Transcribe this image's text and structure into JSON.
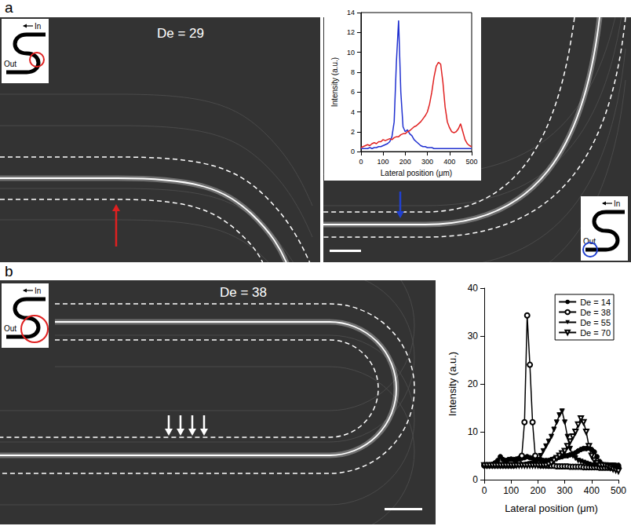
{
  "panels": [
    {
      "label": "a",
      "images": [
        {
          "annotation": "De = 29",
          "icon": {
            "inlet": "In",
            "outlet": "Out",
            "circle_color": "#e02020"
          },
          "arrow_color": "#e02020"
        },
        {
          "icon": {
            "inlet": "In",
            "outlet": "Out",
            "circle_color": "#2040d0"
          },
          "arrow_color": "#2040d0"
        }
      ]
    },
    {
      "label": "b",
      "images": [
        {
          "annotation": "De = 38",
          "icon": {
            "inlet": "In",
            "outlet": "Out",
            "circle_color": "#e02020"
          },
          "arrow_color": "#ffffff"
        }
      ]
    }
  ],
  "chart_data": [
    {
      "type": "line",
      "xlabel": "Lateral position (μm)",
      "ylabel": "Intensity (a.u.)",
      "x": [
        0,
        10,
        20,
        30,
        40,
        50,
        60,
        70,
        80,
        90,
        100,
        110,
        120,
        130,
        140,
        150,
        160,
        170,
        180,
        190,
        200,
        210,
        220,
        230,
        240,
        250,
        260,
        270,
        280,
        290,
        300,
        310,
        320,
        330,
        340,
        350,
        360,
        370,
        380,
        390,
        400,
        410,
        420,
        430,
        440,
        450,
        460,
        470,
        480,
        490,
        500
      ],
      "xlim": [
        0,
        500
      ],
      "xticks": [
        0,
        100,
        200,
        300,
        400,
        500
      ],
      "ylim": [
        0,
        14
      ],
      "yticks": [
        0,
        2,
        4,
        6,
        8,
        10,
        12,
        14
      ],
      "grid": false,
      "series": [
        {
          "color": "#2030d0",
          "values": [
            0.3,
            0.3,
            0.3,
            0.3,
            0.4,
            0.3,
            0.4,
            0.4,
            0.5,
            0.5,
            0.6,
            0.7,
            0.8,
            1.0,
            1.5,
            3.0,
            9.0,
            13.2,
            6.0,
            2.5,
            2.0,
            2.2,
            1.8,
            1.6,
            1.2,
            1.0,
            0.8,
            0.6,
            0.5,
            0.5,
            0.4,
            0.4,
            0.4,
            0.3,
            0.3,
            0.3,
            0.3,
            0.3,
            0.3,
            0.3,
            0.3,
            0.3,
            0.3,
            0.3,
            0.3,
            0.3,
            0.3,
            0.3,
            0.3,
            0.3,
            0.3
          ]
        },
        {
          "color": "#e02020",
          "values": [
            0.4,
            0.5,
            0.6,
            0.7,
            0.6,
            0.8,
            0.9,
            0.8,
            1.0,
            1.0,
            1.2,
            1.1,
            1.2,
            1.3,
            1.2,
            1.4,
            1.5,
            1.5,
            1.7,
            1.8,
            1.8,
            2.0,
            2.1,
            2.3,
            2.5,
            2.6,
            2.8,
            3.0,
            3.3,
            3.6,
            4.0,
            4.8,
            6.0,
            7.5,
            8.6,
            9.0,
            8.8,
            7.0,
            4.5,
            3.0,
            2.4,
            2.0,
            1.9,
            2.0,
            2.3,
            2.8,
            2.0,
            1.2,
            0.8,
            0.6,
            0.5
          ]
        }
      ]
    },
    {
      "type": "line",
      "xlabel": "Lateral position (μm)",
      "ylabel": "Intensity (a.u.)",
      "x": [
        0,
        10,
        20,
        30,
        40,
        50,
        60,
        70,
        80,
        90,
        100,
        110,
        120,
        130,
        140,
        150,
        160,
        170,
        180,
        190,
        200,
        210,
        220,
        230,
        240,
        250,
        260,
        270,
        280,
        290,
        300,
        310,
        320,
        330,
        340,
        350,
        360,
        370,
        380,
        390,
        400,
        410,
        420,
        430,
        440,
        450,
        460,
        470,
        480,
        490,
        500
      ],
      "xlim": [
        0,
        500
      ],
      "xticks": [
        0,
        100,
        200,
        300,
        400,
        500
      ],
      "ylim": [
        0,
        40
      ],
      "yticks": [
        0,
        10,
        20,
        30,
        40
      ],
      "grid": false,
      "legend": "upper right",
      "series": [
        {
          "name": "De = 14",
          "color": "#000000",
          "marker": "circle",
          "values": [
            3,
            3,
            3,
            3.2,
            3.5,
            4,
            4.8,
            4.2,
            4,
            4.2,
            4.3,
            4.2,
            4.3,
            4.5,
            4.5,
            4.6,
            4.8,
            4.6,
            4.5,
            4.3,
            4.2,
            4.2,
            4,
            4,
            4,
            4.2,
            4.4,
            4.5,
            4.7,
            4.8,
            5,
            5,
            5.2,
            5.4,
            5.6,
            6,
            6.3,
            6.5,
            6.5,
            6.6,
            6.3,
            5.8,
            4.8,
            3.8,
            3.2,
            3,
            3,
            3,
            3,
            3,
            3
          ]
        },
        {
          "name": "De = 38",
          "color": "#000000",
          "marker": "circle_open",
          "values": [
            3,
            3,
            3,
            3,
            3,
            3,
            3,
            3,
            3,
            3,
            3,
            3,
            3.2,
            3.5,
            5,
            12,
            34.3,
            24,
            12,
            5,
            3.5,
            3,
            3,
            3,
            2.9,
            2.9,
            2.9,
            2.8,
            2.8,
            2.8,
            2.8,
            2.8,
            2.7,
            2.7,
            2.7,
            2.7,
            2.7,
            2.6,
            2.6,
            2.6,
            2.6,
            2.6,
            2.6,
            2.5,
            2.5,
            2.5,
            2.5,
            2.5,
            2.5,
            2.5,
            2.5
          ]
        },
        {
          "name": "De = 55",
          "color": "#000000",
          "marker": "triangle_down",
          "values": [
            3,
            3,
            3,
            3,
            3,
            3,
            3,
            3,
            3,
            3,
            3,
            3,
            3,
            3,
            3,
            3,
            3.2,
            3.3,
            3.4,
            3.5,
            4,
            5,
            6,
            7,
            8,
            9,
            10.5,
            12,
            13.5,
            14.3,
            12,
            9,
            6.5,
            5,
            4.5,
            4,
            3.8,
            3.6,
            3.4,
            3.2,
            3,
            3,
            3,
            3,
            3,
            3,
            3,
            3,
            3,
            2.8,
            2.5
          ]
        },
        {
          "name": "De = 70",
          "color": "#000000",
          "marker": "triangle_down_open",
          "values": [
            3,
            3,
            3,
            3,
            3,
            3,
            3,
            3,
            3,
            3,
            3,
            3,
            3,
            3,
            3,
            3,
            3,
            3,
            3,
            3,
            3,
            3,
            3,
            3,
            3.2,
            3.5,
            4,
            4.5,
            5,
            5.5,
            6,
            7,
            8,
            9,
            10,
            11.5,
            12.8,
            12,
            10,
            7,
            5,
            4,
            3.5,
            3,
            3,
            3,
            2.8,
            2.5,
            2.2,
            2,
            1.8
          ]
        }
      ]
    }
  ]
}
